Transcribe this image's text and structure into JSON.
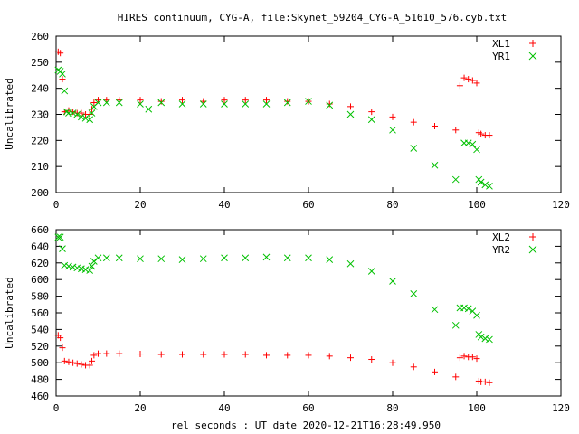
{
  "title": "HIRES continuum, CYG-A, file:Skynet_59204_CYG-A_51610_576.cyb.txt",
  "xlabel": "rel seconds : UT date 2020-12-21T16:28:49.950",
  "chart_data": [
    {
      "type": "scatter",
      "ylabel": "Uncalibrated",
      "xlim": [
        0,
        120
      ],
      "ylim": [
        200,
        260
      ],
      "xticks": [
        0,
        20,
        40,
        60,
        80,
        100,
        120
      ],
      "yticks": [
        200,
        210,
        220,
        230,
        240,
        250,
        260
      ],
      "grid": false,
      "legend_position": "top-right",
      "series": [
        {
          "name": "XL1",
          "marker": "plus",
          "color": "#ff0000",
          "points": [
            [
              0.5,
              254
            ],
            [
              1,
              253.5
            ],
            [
              1.5,
              243.5
            ],
            [
              2,
              231
            ],
            [
              3,
              231.5
            ],
            [
              4,
              231
            ],
            [
              5,
              230.5
            ],
            [
              6,
              230.5
            ],
            [
              7,
              230
            ],
            [
              8,
              230
            ],
            [
              8.5,
              232
            ],
            [
              9,
              234.5
            ],
            [
              10,
              235.5
            ],
            [
              12,
              235.5
            ],
            [
              15,
              235.5
            ],
            [
              20,
              235.5
            ],
            [
              25,
              235
            ],
            [
              30,
              235.5
            ],
            [
              35,
              235
            ],
            [
              40,
              235.5
            ],
            [
              45,
              235.5
            ],
            [
              50,
              235.5
            ],
            [
              55,
              235
            ],
            [
              60,
              235
            ],
            [
              65,
              234
            ],
            [
              70,
              233
            ],
            [
              75,
              231
            ],
            [
              80,
              229
            ],
            [
              85,
              227
            ],
            [
              90,
              225.5
            ],
            [
              95,
              224
            ],
            [
              96,
              241
            ],
            [
              97,
              244
            ],
            [
              98,
              243.5
            ],
            [
              99,
              243
            ],
            [
              100,
              242
            ],
            [
              100.5,
              223
            ],
            [
              101,
              222.5
            ],
            [
              102,
              222
            ],
            [
              103,
              222
            ]
          ]
        },
        {
          "name": "YR1",
          "marker": "cross",
          "color": "#00c000",
          "points": [
            [
              0.5,
              247
            ],
            [
              1,
              246.5
            ],
            [
              1.5,
              245.5
            ],
            [
              2,
              239
            ],
            [
              2.5,
              231
            ],
            [
              3,
              230.5
            ],
            [
              4,
              230.5
            ],
            [
              5,
              230
            ],
            [
              6,
              229
            ],
            [
              7,
              228.5
            ],
            [
              8,
              228
            ],
            [
              8.5,
              230.5
            ],
            [
              9,
              233
            ],
            [
              10,
              234.5
            ],
            [
              12,
              234.5
            ],
            [
              15,
              234.5
            ],
            [
              20,
              234
            ],
            [
              22,
              232
            ],
            [
              25,
              234.5
            ],
            [
              30,
              234
            ],
            [
              35,
              234
            ],
            [
              40,
              234
            ],
            [
              45,
              234
            ],
            [
              50,
              234
            ],
            [
              55,
              234.5
            ],
            [
              60,
              235
            ],
            [
              65,
              233.5
            ],
            [
              70,
              230
            ],
            [
              75,
              228
            ],
            [
              80,
              224
            ],
            [
              85,
              217
            ],
            [
              90,
              210.5
            ],
            [
              95,
              205
            ],
            [
              97,
              219
            ],
            [
              98,
              219
            ],
            [
              99,
              218.5
            ],
            [
              100,
              216.5
            ],
            [
              100.5,
              205
            ],
            [
              101,
              204
            ],
            [
              102,
              203
            ],
            [
              103,
              202.5
            ]
          ]
        }
      ]
    },
    {
      "type": "scatter",
      "ylabel": "Uncalibrated",
      "xlim": [
        0,
        120
      ],
      "ylim": [
        460,
        660
      ],
      "xticks": [
        0,
        20,
        40,
        60,
        80,
        100,
        120
      ],
      "yticks": [
        460,
        480,
        500,
        520,
        540,
        560,
        580,
        600,
        620,
        640,
        660
      ],
      "grid": false,
      "legend_position": "top-right",
      "series": [
        {
          "name": "XL2",
          "marker": "plus",
          "color": "#ff0000",
          "points": [
            [
              0.5,
              533
            ],
            [
              1,
              530
            ],
            [
              1.5,
              518
            ],
            [
              2,
              502
            ],
            [
              3,
              501
            ],
            [
              4,
              500
            ],
            [
              5,
              499
            ],
            [
              6,
              498
            ],
            [
              7,
              497
            ],
            [
              8,
              497
            ],
            [
              8.5,
              502
            ],
            [
              9,
              509
            ],
            [
              10,
              511
            ],
            [
              12,
              511
            ],
            [
              15,
              511
            ],
            [
              20,
              510.5
            ],
            [
              25,
              510
            ],
            [
              30,
              510
            ],
            [
              35,
              510
            ],
            [
              40,
              510
            ],
            [
              45,
              510
            ],
            [
              50,
              509
            ],
            [
              55,
              509
            ],
            [
              60,
              509
            ],
            [
              65,
              508
            ],
            [
              70,
              506
            ],
            [
              75,
              504
            ],
            [
              80,
              500
            ],
            [
              85,
              495
            ],
            [
              90,
              489
            ],
            [
              95,
              483
            ],
            [
              96,
              506
            ],
            [
              97,
              508
            ],
            [
              98,
              507
            ],
            [
              99,
              507
            ],
            [
              100,
              505
            ],
            [
              100.5,
              478
            ],
            [
              101,
              477
            ],
            [
              102,
              477
            ],
            [
              103,
              476
            ]
          ]
        },
        {
          "name": "YR2",
          "marker": "cross",
          "color": "#00c000",
          "points": [
            [
              0.5,
              651
            ],
            [
              1,
              651
            ],
            [
              1.5,
              637
            ],
            [
              2,
              617
            ],
            [
              3,
              616
            ],
            [
              4,
              615
            ],
            [
              5,
              614
            ],
            [
              6,
              613
            ],
            [
              7,
              612
            ],
            [
              8,
              611
            ],
            [
              8.5,
              616
            ],
            [
              9,
              622
            ],
            [
              10,
              626
            ],
            [
              12,
              626
            ],
            [
              15,
              626
            ],
            [
              20,
              625
            ],
            [
              25,
              625
            ],
            [
              30,
              624
            ],
            [
              35,
              625
            ],
            [
              40,
              626
            ],
            [
              45,
              626
            ],
            [
              50,
              627
            ],
            [
              55,
              626
            ],
            [
              60,
              626
            ],
            [
              65,
              624
            ],
            [
              70,
              619
            ],
            [
              75,
              610
            ],
            [
              80,
              598
            ],
            [
              85,
              583
            ],
            [
              90,
              564
            ],
            [
              95,
              545
            ],
            [
              96,
              566
            ],
            [
              97,
              566
            ],
            [
              98,
              565
            ],
            [
              99,
              562
            ],
            [
              100,
              557
            ],
            [
              100.5,
              534
            ],
            [
              101,
              531
            ],
            [
              102,
              529
            ],
            [
              103,
              528
            ]
          ]
        }
      ]
    }
  ]
}
